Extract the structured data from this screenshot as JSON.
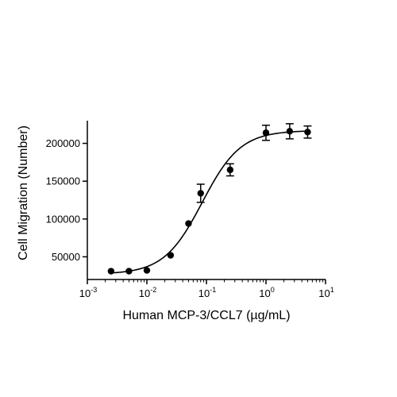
{
  "chart_data": {
    "type": "scatter",
    "xlabel": "Human MCP-3/CCL7 (µg/mL)",
    "ylabel": "Cell Migration (Number)",
    "xscale": "log",
    "xlim": [
      0.001,
      10
    ],
    "ylim": [
      20000,
      230000
    ],
    "grid": false,
    "x_ticks": [
      {
        "base": "10",
        "exp": "-3"
      },
      {
        "base": "10",
        "exp": "-2"
      },
      {
        "base": "10",
        "exp": "-1"
      },
      {
        "base": "10",
        "exp": "0"
      },
      {
        "base": "10",
        "exp": "1"
      }
    ],
    "y_ticks": [
      "50000",
      "100000",
      "150000",
      "200000"
    ],
    "series": [
      {
        "x": [
          0.0025,
          0.005,
          0.01,
          0.025,
          0.05,
          0.08,
          0.25,
          1.0,
          2.5,
          5.0
        ],
        "y": [
          31000,
          31000,
          32000,
          52000,
          94000,
          134000,
          165000,
          214000,
          216000,
          215000
        ],
        "error": [
          0,
          0,
          0,
          0,
          0,
          12000,
          8000,
          10000,
          10000,
          8000
        ],
        "fit": "sigmoidal"
      }
    ],
    "fit_curve": {
      "bottom": 27000,
      "top": 217000,
      "ec50": 0.085,
      "hill": 1.35
    }
  }
}
